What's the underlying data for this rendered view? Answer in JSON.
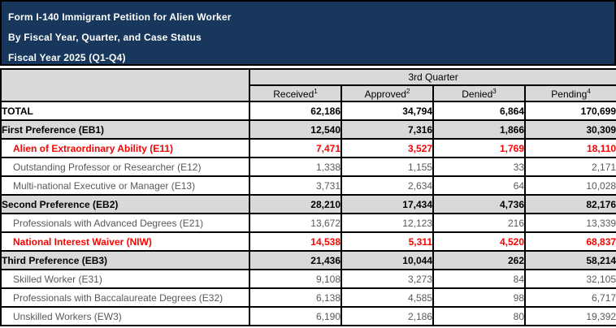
{
  "banner": {
    "line1": "Form I-140 Immigrant Petition for Alien Worker",
    "line2": "By Fiscal Year, Quarter, and Case Status",
    "line3": "Fiscal Year 2025 (Q1-Q4)",
    "bg_color": "#17375D",
    "text_color": "#FFFFFF"
  },
  "table": {
    "quarter_header": "3rd Quarter",
    "columns": [
      {
        "label": "Received",
        "sup": "1"
      },
      {
        "label": "Approved",
        "sup": "2"
      },
      {
        "label": "Denied",
        "sup": "3"
      },
      {
        "label": "Pending",
        "sup": "4"
      }
    ],
    "rows": [
      {
        "label": "TOTAL",
        "style": "total",
        "values": [
          "62,186",
          "34,794",
          "6,864",
          "170,699"
        ]
      },
      {
        "label": "First Preference (EB1)",
        "style": "section",
        "values": [
          "12,540",
          "7,316",
          "1,866",
          "30,309"
        ]
      },
      {
        "label": "Alien of Extraordinary Ability (E11)",
        "style": "highlight",
        "values": [
          "7,471",
          "3,527",
          "1,769",
          "18,110"
        ]
      },
      {
        "label": "Outstanding Professor or Researcher (E12)",
        "style": "item",
        "values": [
          "1,338",
          "1,155",
          "33",
          "2,171"
        ]
      },
      {
        "label": "Multi-national Executive or Manager (E13)",
        "style": "item",
        "values": [
          "3,731",
          "2,634",
          "64",
          "10,028"
        ]
      },
      {
        "label": "Second Preference (EB2)",
        "style": "section",
        "values": [
          "28,210",
          "17,434",
          "4,736",
          "82,176"
        ]
      },
      {
        "label": "Professionals with Advanced Degrees (E21)",
        "style": "item",
        "values": [
          "13,672",
          "12,123",
          "216",
          "13,339"
        ]
      },
      {
        "label": "National Interest Waiver (NIW)",
        "style": "highlight",
        "values": [
          "14,538",
          "5,311",
          "4,520",
          "68,837"
        ]
      },
      {
        "label": "Third Preference (EB3)",
        "style": "section",
        "values": [
          "21,436",
          "10,044",
          "262",
          "58,214"
        ]
      },
      {
        "label": "Skilled Worker (E31)",
        "style": "item",
        "values": [
          "9,108",
          "3,273",
          "84",
          "32,105"
        ]
      },
      {
        "label": "Professionals with Baccalaureate Degrees (E32)",
        "style": "item",
        "values": [
          "6,138",
          "4,585",
          "98",
          "6,717"
        ]
      },
      {
        "label": "Unskilled Workers (EW3)",
        "style": "item",
        "values": [
          "6,190",
          "2,186",
          "80",
          "19,392"
        ]
      }
    ],
    "colors": {
      "header_bg": "#D9D9D9",
      "section_bg": "#D9D9D9",
      "highlight_text": "#FF0000",
      "item_text": "#595959",
      "border": "#000000"
    }
  }
}
